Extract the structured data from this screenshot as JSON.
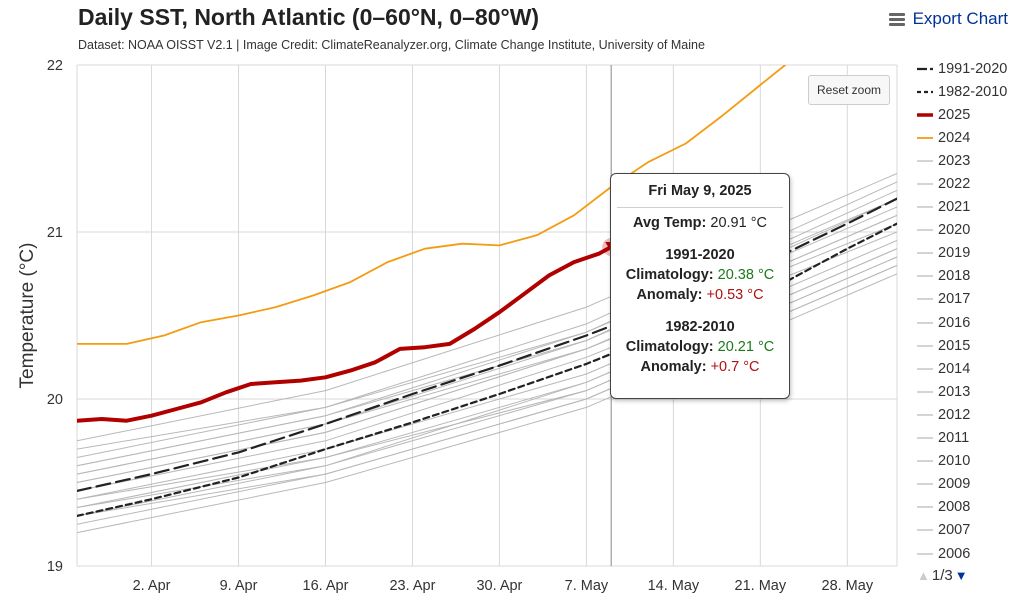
{
  "header": {
    "title": "Daily SST, North Atlantic (0–60°N, 0–80°W)",
    "subtitle": "Dataset: NOAA OISST V2.1 | Image Credit: ClimateReanalyzer.org, Climate Change Institute, University of Maine",
    "export_label": "Export Chart",
    "reset_zoom_label": "Reset zoom"
  },
  "tooltip": {
    "date": "Fri May 9, 2025",
    "avg_label": "Avg Temp:",
    "avg_value": "20.91 °C",
    "block1_title": "1991-2020",
    "clim_label": "Climatology:",
    "block1_clim": "20.38 °C",
    "anom_label": "Anomaly:",
    "block1_anom": "+0.53 °C",
    "block2_title": "1982-2010",
    "block2_clim": "20.21 °C",
    "block2_anom": "+0.7 °C"
  },
  "legend_pager": {
    "text": "1/3",
    "up_icon": "triangle-up-icon",
    "down_icon": "triangle-down-icon"
  },
  "colors": {
    "y2025": "#b00000",
    "y2024": "#f39c12",
    "climatology": "#222222",
    "past_years": "#b8b8b8",
    "grid": "#d8d8d8",
    "crosshair": "#b0b0b0"
  },
  "chart_data": {
    "type": "line",
    "title": "Daily SST, North Atlantic (0–60°N, 0–80°W)",
    "ylabel": "Temperature (°C)",
    "xlabel": "",
    "ylim": [
      19,
      22
    ],
    "xlim": [
      "2025-03-27",
      "2025-06-01"
    ],
    "x_ticks": [
      {
        "date": "2025-04-02",
        "label": "2. Apr"
      },
      {
        "date": "2025-04-09",
        "label": "9. Apr"
      },
      {
        "date": "2025-04-16",
        "label": "16. Apr"
      },
      {
        "date": "2025-04-23",
        "label": "23. Apr"
      },
      {
        "date": "2025-04-30",
        "label": "30. Apr"
      },
      {
        "date": "2025-05-07",
        "label": "7. May"
      },
      {
        "date": "2025-05-14",
        "label": "14. May"
      },
      {
        "date": "2025-05-21",
        "label": "21. May"
      },
      {
        "date": "2025-05-28",
        "label": "28. May"
      }
    ],
    "y_ticks": [
      19,
      20,
      21,
      22
    ],
    "grid": true,
    "legend_position": "right",
    "highlight": {
      "date": "2025-05-09",
      "series": "2025",
      "value": 20.91
    },
    "series": [
      {
        "name": "1991-2020",
        "style": "long-dash",
        "color": "#222222",
        "x": [
          "2025-03-27",
          "2025-04-02",
          "2025-04-09",
          "2025-04-16",
          "2025-04-23",
          "2025-04-30",
          "2025-05-07",
          "2025-05-14",
          "2025-05-21",
          "2025-05-28",
          "2025-06-01"
        ],
        "y": [
          19.45,
          19.55,
          19.68,
          19.85,
          20.03,
          20.2,
          20.38,
          20.58,
          20.8,
          21.05,
          21.2
        ]
      },
      {
        "name": "1982-2010",
        "style": "dash",
        "color": "#222222",
        "x": [
          "2025-03-27",
          "2025-04-02",
          "2025-04-09",
          "2025-04-16",
          "2025-04-23",
          "2025-04-30",
          "2025-05-07",
          "2025-05-14",
          "2025-05-21",
          "2025-05-28",
          "2025-06-01"
        ],
        "y": [
          19.3,
          19.4,
          19.53,
          19.7,
          19.86,
          20.03,
          20.21,
          20.42,
          20.62,
          20.9,
          21.05
        ]
      },
      {
        "name": "2025",
        "style": "solid-thick",
        "color": "#b00000",
        "x": [
          "2025-03-27",
          "2025-03-29",
          "2025-03-31",
          "2025-04-02",
          "2025-04-04",
          "2025-04-06",
          "2025-04-08",
          "2025-04-10",
          "2025-04-12",
          "2025-04-14",
          "2025-04-16",
          "2025-04-18",
          "2025-04-20",
          "2025-04-22",
          "2025-04-24",
          "2025-04-26",
          "2025-04-28",
          "2025-04-30",
          "2025-05-02",
          "2025-05-04",
          "2025-05-06",
          "2025-05-08",
          "2025-05-09"
        ],
        "y": [
          19.87,
          19.88,
          19.87,
          19.9,
          19.94,
          19.98,
          20.04,
          20.09,
          20.1,
          20.11,
          20.13,
          20.17,
          20.22,
          20.3,
          20.31,
          20.33,
          20.42,
          20.52,
          20.63,
          20.74,
          20.82,
          20.87,
          20.91
        ]
      },
      {
        "name": "2024",
        "style": "solid",
        "color": "#f39c12",
        "x": [
          "2025-03-27",
          "2025-03-31",
          "2025-04-03",
          "2025-04-06",
          "2025-04-09",
          "2025-04-12",
          "2025-04-15",
          "2025-04-18",
          "2025-04-21",
          "2025-04-24",
          "2025-04-27",
          "2025-04-30",
          "2025-05-03",
          "2025-05-06",
          "2025-05-09",
          "2025-05-12",
          "2025-05-15",
          "2025-05-18",
          "2025-05-21",
          "2025-05-23"
        ],
        "y": [
          20.33,
          20.33,
          20.38,
          20.46,
          20.5,
          20.55,
          20.62,
          20.7,
          20.82,
          20.9,
          20.93,
          20.92,
          20.98,
          21.1,
          21.27,
          21.42,
          21.53,
          21.7,
          21.88,
          22.0
        ]
      },
      {
        "name": "2023",
        "style": "solid-thin",
        "color": "#b8b8b8",
        "x": [
          "2025-03-27",
          "2025-04-16",
          "2025-05-07",
          "2025-06-01"
        ],
        "y": [
          19.75,
          20.05,
          20.55,
          21.35
        ]
      },
      {
        "name": "2022",
        "style": "solid-thin",
        "color": "#b8b8b8",
        "x": [
          "2025-03-27",
          "2025-04-16",
          "2025-05-07",
          "2025-06-01"
        ],
        "y": [
          19.6,
          19.9,
          20.35,
          21.15
        ]
      },
      {
        "name": "2021",
        "style": "solid-thin",
        "color": "#b8b8b8",
        "x": [
          "2025-03-27",
          "2025-04-16",
          "2025-05-07",
          "2025-06-01"
        ],
        "y": [
          19.55,
          19.85,
          20.3,
          21.05
        ]
      },
      {
        "name": "2020",
        "style": "solid-thin",
        "color": "#b8b8b8",
        "x": [
          "2025-03-27",
          "2025-04-16",
          "2025-05-07",
          "2025-06-01"
        ],
        "y": [
          19.65,
          19.95,
          20.4,
          21.25
        ]
      },
      {
        "name": "2019",
        "style": "solid-thin",
        "color": "#b8b8b8",
        "x": [
          "2025-03-27",
          "2025-04-16",
          "2025-05-07",
          "2025-06-01"
        ],
        "y": [
          19.5,
          19.8,
          20.3,
          21.1
        ]
      },
      {
        "name": "2018",
        "style": "solid-thin",
        "color": "#b8b8b8",
        "x": [
          "2025-03-27",
          "2025-04-16",
          "2025-05-07",
          "2025-06-01"
        ],
        "y": [
          19.4,
          19.7,
          20.15,
          20.95
        ]
      },
      {
        "name": "2017",
        "style": "solid-thin",
        "color": "#b8b8b8",
        "x": [
          "2025-03-27",
          "2025-04-16",
          "2025-05-07",
          "2025-06-01"
        ],
        "y": [
          19.6,
          19.9,
          20.4,
          21.2
        ]
      },
      {
        "name": "2016",
        "style": "solid-thin",
        "color": "#b8b8b8",
        "x": [
          "2025-03-27",
          "2025-04-16",
          "2025-05-07",
          "2025-06-01"
        ],
        "y": [
          19.7,
          19.95,
          20.45,
          21.3
        ]
      },
      {
        "name": "2015",
        "style": "solid-thin",
        "color": "#b8b8b8",
        "x": [
          "2025-03-27",
          "2025-04-16",
          "2025-05-07",
          "2025-06-01"
        ],
        "y": [
          19.45,
          19.75,
          20.25,
          21.0
        ]
      },
      {
        "name": "2014",
        "style": "solid-thin",
        "color": "#b8b8b8",
        "x": [
          "2025-03-27",
          "2025-04-16",
          "2025-05-07",
          "2025-06-01"
        ],
        "y": [
          19.35,
          19.65,
          20.1,
          20.9
        ]
      },
      {
        "name": "2013",
        "style": "solid-thin",
        "color": "#b8b8b8",
        "x": [
          "2025-03-27",
          "2025-04-16",
          "2025-05-07",
          "2025-06-01"
        ],
        "y": [
          19.4,
          19.65,
          20.05,
          20.85
        ]
      },
      {
        "name": "2012",
        "style": "solid-thin",
        "color": "#b8b8b8",
        "x": [
          "2025-03-27",
          "2025-04-16",
          "2025-05-07",
          "2025-06-01"
        ],
        "y": [
          19.5,
          19.8,
          20.3,
          21.1
        ]
      },
      {
        "name": "2011",
        "style": "solid-thin",
        "color": "#b8b8b8",
        "x": [
          "2025-03-27",
          "2025-04-16",
          "2025-05-07",
          "2025-06-01"
        ],
        "y": [
          19.3,
          19.6,
          20.05,
          20.85
        ]
      },
      {
        "name": "2010",
        "style": "solid-thin",
        "color": "#b8b8b8",
        "x": [
          "2025-03-27",
          "2025-04-16",
          "2025-05-07",
          "2025-06-01"
        ],
        "y": [
          19.55,
          19.85,
          20.35,
          21.2
        ]
      },
      {
        "name": "2009",
        "style": "solid-thin",
        "color": "#b8b8b8",
        "x": [
          "2025-03-27",
          "2025-04-16",
          "2025-05-07",
          "2025-06-01"
        ],
        "y": [
          19.25,
          19.55,
          20.0,
          20.8
        ]
      },
      {
        "name": "2008",
        "style": "solid-thin",
        "color": "#b8b8b8",
        "x": [
          "2025-03-27",
          "2025-04-16",
          "2025-05-07",
          "2025-06-01"
        ],
        "y": [
          19.2,
          19.5,
          19.95,
          20.75
        ]
      },
      {
        "name": "2007",
        "style": "solid-thin",
        "color": "#b8b8b8",
        "x": [
          "2025-03-27",
          "2025-04-16",
          "2025-05-07",
          "2025-06-01"
        ],
        "y": [
          19.3,
          19.55,
          20.0,
          20.8
        ]
      },
      {
        "name": "2006",
        "style": "solid-thin",
        "color": "#b8b8b8",
        "x": [
          "2025-03-27",
          "2025-04-16",
          "2025-05-07",
          "2025-06-01"
        ],
        "y": [
          19.35,
          19.6,
          20.1,
          20.9
        ]
      }
    ]
  }
}
